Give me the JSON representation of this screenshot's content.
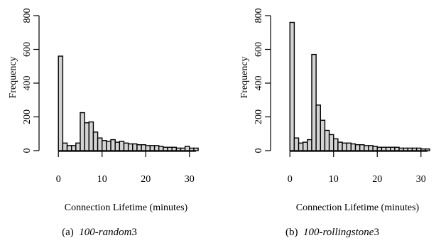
{
  "chart_data": [
    {
      "type": "bar",
      "histogram": true,
      "bin_width_minutes": 1,
      "x_start": 0,
      "xlim": [
        -1.5,
        31.5
      ],
      "ylim": [
        0,
        800
      ],
      "xticks": [
        0,
        10,
        20,
        30
      ],
      "yticks": [
        0,
        200,
        400,
        600,
        800
      ],
      "xlabel": "Connection Lifetime (minutes)",
      "ylabel": "Frequency",
      "values": [
        560,
        45,
        30,
        30,
        45,
        225,
        165,
        170,
        110,
        75,
        60,
        55,
        65,
        50,
        55,
        45,
        40,
        40,
        35,
        35,
        30,
        30,
        30,
        25,
        20,
        20,
        20,
        15,
        15,
        25,
        15,
        15
      ],
      "caption": {
        "label": "(a)",
        "name": "100-random",
        "suffix": "3"
      }
    },
    {
      "type": "bar",
      "histogram": true,
      "bin_width_minutes": 1,
      "x_start": 0,
      "xlim": [
        -1.5,
        31.5
      ],
      "ylim": [
        0,
        800
      ],
      "xticks": [
        0,
        10,
        20,
        30
      ],
      "yticks": [
        0,
        200,
        400,
        600,
        800
      ],
      "xlabel": "Connection Lifetime (minutes)",
      "ylabel": "Frequency",
      "values": [
        760,
        75,
        45,
        50,
        65,
        570,
        270,
        180,
        120,
        95,
        70,
        50,
        45,
        45,
        40,
        35,
        35,
        30,
        30,
        25,
        20,
        20,
        20,
        20,
        20,
        15,
        15,
        15,
        15,
        15,
        10,
        10
      ],
      "caption": {
        "label": "(b)",
        "name": "100-rollingstone",
        "suffix": "3"
      }
    }
  ]
}
